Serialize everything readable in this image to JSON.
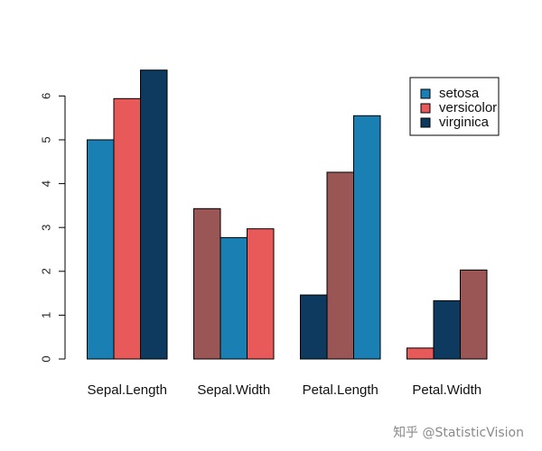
{
  "chart_data": {
    "type": "bar",
    "categories": [
      "Sepal.Length",
      "Sepal.Width",
      "Petal.Length",
      "Petal.Width"
    ],
    "series": [
      {
        "name": "setosa",
        "values": [
          5.0,
          3.43,
          1.46,
          0.25
        ]
      },
      {
        "name": "versicolor",
        "values": [
          5.94,
          2.77,
          4.26,
          1.33
        ]
      },
      {
        "name": "virginica",
        "values": [
          6.59,
          2.97,
          5.55,
          2.03
        ]
      }
    ],
    "bar_colors": [
      [
        "#1a80b4",
        "#e85a5a",
        "#0d3a5e"
      ],
      [
        "#9a5555",
        "#1a80b4",
        "#e85a5a"
      ],
      [
        "#0d3a5e",
        "#9a5555",
        "#1a80b4"
      ],
      [
        "#e85a5a",
        "#0d3a5e",
        "#9a5555"
      ]
    ],
    "legend_colors": [
      "#1a80b4",
      "#e85a5a",
      "#0d3a5e"
    ],
    "y_ticks": [
      "0",
      "1",
      "2",
      "3",
      "4",
      "5",
      "6"
    ],
    "ylim": [
      0,
      6.7
    ],
    "title": "",
    "xlabel": "",
    "ylabel": "",
    "grid": false,
    "legend_position": "top-right"
  },
  "watermark": "知乎 @StatisticVision"
}
